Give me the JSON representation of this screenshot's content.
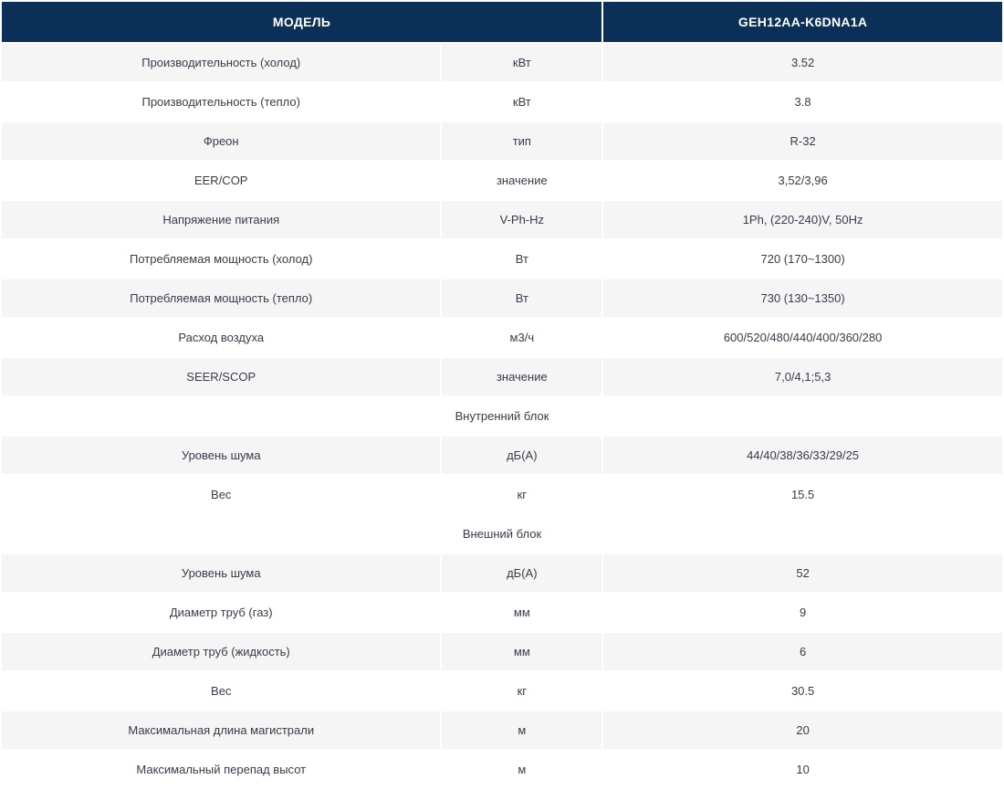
{
  "header": {
    "model_label": "МОДЕЛЬ",
    "model_value": "GEH12AA-K6DNA1A"
  },
  "colors": {
    "header_bg": "#0b3057",
    "header_text": "#ffffff",
    "row_alt_bg": "#f5f5f5",
    "row_bg": "#ffffff",
    "text": "#3a3a4a"
  },
  "layout": {
    "col_widths": [
      "44%",
      "16%",
      "40%"
    ],
    "font_size_header": 14,
    "font_size_cell": 13,
    "cell_padding_v": 13
  },
  "rows": [
    {
      "type": "data",
      "alt": true,
      "label": "Производительность (холод)",
      "unit": "кВт",
      "value": "3.52"
    },
    {
      "type": "data",
      "alt": false,
      "label": "Производительность (тепло)",
      "unit": "кВт",
      "value": "3.8"
    },
    {
      "type": "data",
      "alt": true,
      "label": "Фреон",
      "unit": "тип",
      "value": "R-32"
    },
    {
      "type": "data",
      "alt": false,
      "label": "EER/COP",
      "unit": "значение",
      "value": "3,52/3,96"
    },
    {
      "type": "data",
      "alt": true,
      "label": "Напряжение питания",
      "unit": "V-Ph-Hz",
      "value": "1Ph, (220-240)V, 50Hz"
    },
    {
      "type": "data",
      "alt": false,
      "label": "Потребляемая мощность (холод)",
      "unit": "Вт",
      "value": "720 (170~1300)"
    },
    {
      "type": "data",
      "alt": true,
      "label": "Потребляемая мощность (тепло)",
      "unit": "Вт",
      "value": "730 (130~1350)"
    },
    {
      "type": "data",
      "alt": false,
      "label": "Расход воздуха",
      "unit": "м3/ч",
      "value": "600/520/480/440/400/360/280"
    },
    {
      "type": "data",
      "alt": true,
      "label": "SEER/SCOP",
      "unit": "значение",
      "value": "7,0/4,1;5,3"
    },
    {
      "type": "section",
      "label": "Внутренний блок"
    },
    {
      "type": "data",
      "alt": true,
      "label": "Уровень шума",
      "unit": "дБ(А)",
      "value": "44/40/38/36/33/29/25"
    },
    {
      "type": "data",
      "alt": false,
      "label": "Вес",
      "unit": "кг",
      "value": "15.5"
    },
    {
      "type": "section",
      "label": "Внешний блок"
    },
    {
      "type": "data",
      "alt": true,
      "label": "Уровень шума",
      "unit": "дБ(А)",
      "value": "52"
    },
    {
      "type": "data",
      "alt": false,
      "label": "Диаметр труб (газ)",
      "unit": "мм",
      "value": "9"
    },
    {
      "type": "data",
      "alt": true,
      "label": "Диаметр труб (жидкость)",
      "unit": "мм",
      "value": "6"
    },
    {
      "type": "data",
      "alt": false,
      "label": "Вес",
      "unit": "кг",
      "value": "30.5"
    },
    {
      "type": "data",
      "alt": true,
      "label": "Максимальная длина магистрали",
      "unit": "м",
      "value": "20"
    },
    {
      "type": "data",
      "alt": false,
      "label": "Максимальный перепад высот",
      "unit": "м",
      "value": "10"
    }
  ]
}
